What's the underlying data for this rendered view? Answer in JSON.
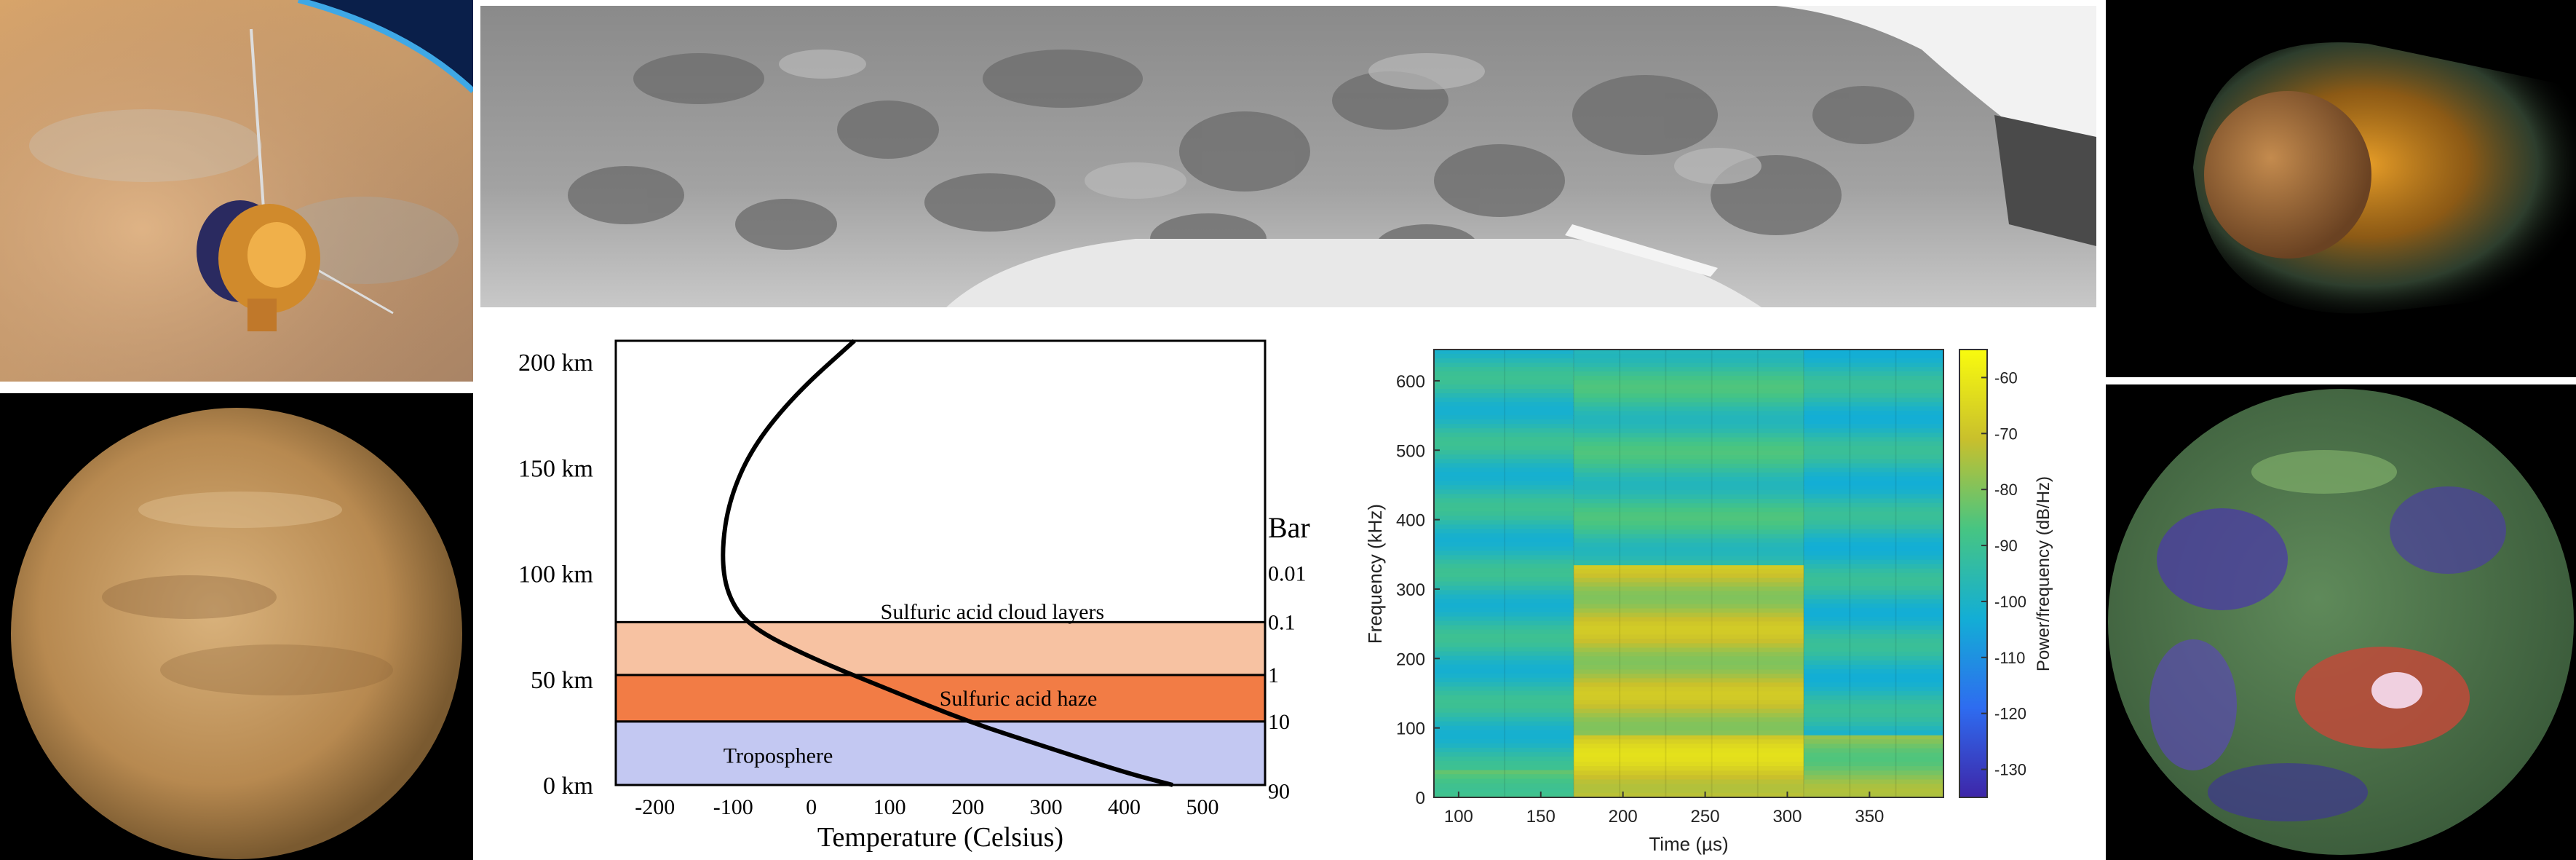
{
  "images": {
    "probe": "spacecraft-over-venus",
    "surface": "venera-surface-panorama",
    "magneto": "venus-induced-magnetosphere",
    "venus_uv": "venus-cloud-tops",
    "venus_radar": "venus-radar-topography"
  },
  "chart_data": [
    {
      "type": "line",
      "xlabel": "Temperature (Celsius)",
      "x_ticks": [
        "-200",
        "-100",
        "0",
        "100",
        "200",
        "300",
        "400",
        "500"
      ],
      "xlim": [
        -250,
        580
      ],
      "y_ticks": [
        "200 km",
        "150 km",
        "100 km",
        "50 km",
        "0 km"
      ],
      "ylim": [
        0,
        210
      ],
      "right_axis_label": "Bar",
      "pressure_ticks": [
        {
          "label": "0.01",
          "alt": 100
        },
        {
          "label": "0.1",
          "alt": 77
        },
        {
          "label": "1",
          "alt": 52
        },
        {
          "label": "10",
          "alt": 30
        },
        {
          "label": "90",
          "alt": -3
        }
      ],
      "layers": [
        {
          "name": "Sulfuric acid cloud layers",
          "from": 52,
          "to": 77,
          "color": "#f7c2a2"
        },
        {
          "name": "Sulfuric acid haze",
          "from": 30,
          "to": 52,
          "color": "#f27c45"
        },
        {
          "name": "Troposphere",
          "from": 0,
          "to": 30,
          "color": "#c3c8f2"
        }
      ],
      "series": [
        {
          "x": [
            55,
            -20,
            -75,
            -105,
            -115,
            -108,
            -80,
            0,
            100,
            200,
            300,
            400,
            462
          ],
          "y": [
            210,
            185,
            160,
            135,
            110,
            90,
            75,
            60,
            45,
            30,
            18,
            6,
            0
          ]
        }
      ]
    },
    {
      "type": "heatmap",
      "xlabel": "Time (µs)",
      "ylabel": "Frequency (kHz)",
      "colorbar_label": "Power/frequency (dB/Hz)",
      "x_ticks": [
        "100",
        "150",
        "200",
        "250",
        "300",
        "350"
      ],
      "xlim": [
        85,
        395
      ],
      "y_ticks": [
        "0",
        "100",
        "200",
        "300",
        "400",
        "500",
        "600"
      ],
      "ylim": [
        0,
        645
      ],
      "colorbar_ticks": [
        "-60",
        "-70",
        "-80",
        "-90",
        "-100",
        "-110",
        "-120",
        "-130"
      ],
      "clim": [
        -135,
        -55
      ],
      "time_columns": [
        85,
        128,
        170,
        198,
        226,
        254,
        282,
        310,
        338,
        366,
        395
      ],
      "regions": [
        {
          "t": [
            85,
            170
          ],
          "f": [
            0,
            40
          ],
          "db": -84
        },
        {
          "t": [
            85,
            170
          ],
          "f": [
            40,
            645
          ],
          "db": -96
        },
        {
          "t": [
            170,
            310
          ],
          "f": [
            0,
            90
          ],
          "db": -68
        },
        {
          "t": [
            170,
            310
          ],
          "f": [
            90,
            335
          ],
          "db": -74
        },
        {
          "t": [
            170,
            310
          ],
          "f": [
            335,
            645
          ],
          "db": -92
        },
        {
          "t": [
            310,
            395
          ],
          "f": [
            0,
            90
          ],
          "db": -80
        },
        {
          "t": [
            310,
            395
          ],
          "f": [
            90,
            645
          ],
          "db": -97
        }
      ]
    }
  ]
}
